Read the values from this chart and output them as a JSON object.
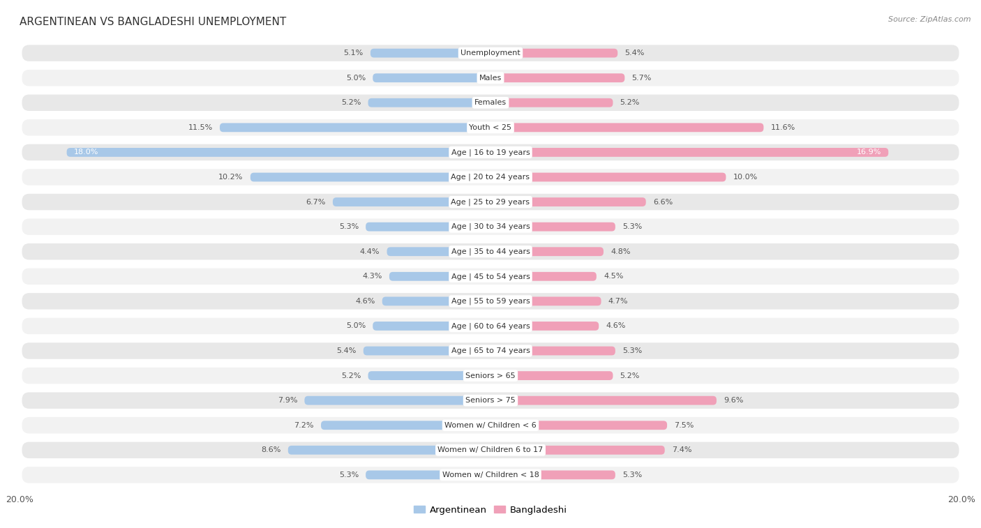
{
  "title": "ARGENTINEAN VS BANGLADESHI UNEMPLOYMENT",
  "source": "Source: ZipAtlas.com",
  "categories": [
    "Unemployment",
    "Males",
    "Females",
    "Youth < 25",
    "Age | 16 to 19 years",
    "Age | 20 to 24 years",
    "Age | 25 to 29 years",
    "Age | 30 to 34 years",
    "Age | 35 to 44 years",
    "Age | 45 to 54 years",
    "Age | 55 to 59 years",
    "Age | 60 to 64 years",
    "Age | 65 to 74 years",
    "Seniors > 65",
    "Seniors > 75",
    "Women w/ Children < 6",
    "Women w/ Children 6 to 17",
    "Women w/ Children < 18"
  ],
  "argentinean": [
    5.1,
    5.0,
    5.2,
    11.5,
    18.0,
    10.2,
    6.7,
    5.3,
    4.4,
    4.3,
    4.6,
    5.0,
    5.4,
    5.2,
    7.9,
    7.2,
    8.6,
    5.3
  ],
  "bangladeshi": [
    5.4,
    5.7,
    5.2,
    11.6,
    16.9,
    10.0,
    6.6,
    5.3,
    4.8,
    4.5,
    4.7,
    4.6,
    5.3,
    5.2,
    9.6,
    7.5,
    7.4,
    5.3
  ],
  "arg_color": "#a8c8e8",
  "ban_color": "#f0a0b8",
  "axis_max": 20.0,
  "background_color": "#ffffff",
  "row_bg_color": "#e8e8e8",
  "row_bg_alt_color": "#f2f2f2",
  "label_bg_color": "#ffffff",
  "legend_arg_color": "#a8c8e8",
  "legend_ban_color": "#f0a0b8",
  "title_fontsize": 11,
  "source_fontsize": 8,
  "label_fontsize": 8,
  "value_fontsize": 8
}
